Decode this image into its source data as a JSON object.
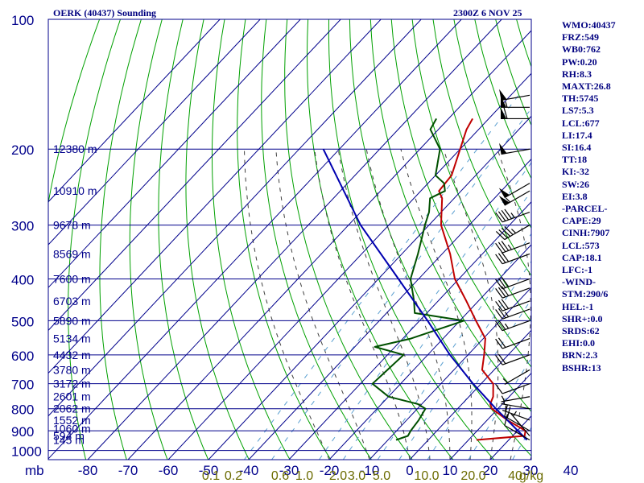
{
  "header": {
    "station": "OERK (40437) Sounding",
    "time": "2300Z  6 NOV 25"
  },
  "colors": {
    "frame": "#00008b",
    "text": "#000080",
    "temperature": "#c00000",
    "dewpoint": "#005000",
    "parcel": "#0000b0",
    "dry_adiabat": "#00a000",
    "moist_adiabat": "#404040",
    "mixing_ratio": "#5a9fd0",
    "mixing_ratio_labels": "#6b6b00",
    "wind": "#000000"
  },
  "indices": [
    "WMO:40437",
    "FRZ:549",
    "WB0:762",
    "PW:0.20",
    "RH:8.3",
    "MAXT:26.8",
    "TH:5745",
    "LS7:5.3",
    "LCL:677",
    "LI:17.4",
    "SI:16.4",
    "TT:18",
    "KI:-32",
    "SW:26",
    "EI:3.8",
    "-PARCEL-",
    "CAPE:29",
    "CINH:7907",
    "LCL:573",
    "CAP:18.1",
    "LFC:-1",
    "-WIND-",
    "STM:290/6",
    "HEL:-1",
    "SHR+:0.0",
    "SRDS:62",
    "EHI:0.0",
    "BRN:2.3",
    "BSHR:13"
  ],
  "chart_data": {
    "type": "skew-t",
    "xlabel": "",
    "ylabel": "mb",
    "pressure_ticks": [
      "100",
      "200",
      "300",
      "400",
      "500",
      "600",
      "700",
      "800",
      "900",
      "1000"
    ],
    "pressure_levels": [
      100,
      200,
      300,
      400,
      500,
      600,
      700,
      800,
      900,
      1000
    ],
    "temperature_ticks": [
      "-80",
      "-70",
      "-60",
      "-50",
      "-40",
      "-30",
      "-20",
      "-10",
      "0",
      "10",
      "20",
      "30",
      "40"
    ],
    "temperature_values": [
      -80,
      -70,
      -60,
      -50,
      -40,
      -30,
      -20,
      -10,
      0,
      10,
      20,
      30,
      40
    ],
    "height_labels": [
      {
        "p": 945,
        "text": "145 m"
      },
      {
        "p": 925,
        "text": "594 m"
      },
      {
        "p": 890,
        "text": "1060 m"
      },
      {
        "p": 850,
        "text": "1552 m"
      },
      {
        "p": 800,
        "text": "2062 m"
      },
      {
        "p": 750,
        "text": "2601 m"
      },
      {
        "p": 700,
        "text": "3172 m"
      },
      {
        "p": 650,
        "text": "3780 m"
      },
      {
        "p": 600,
        "text": "4432 m"
      },
      {
        "p": 550,
        "text": "5134 m"
      },
      {
        "p": 500,
        "text": "5890 m"
      },
      {
        "p": 450,
        "text": "6703 m"
      },
      {
        "p": 400,
        "text": "7600 m"
      },
      {
        "p": 350,
        "text": "8569 m"
      },
      {
        "p": 300,
        "text": "9678 m"
      },
      {
        "p": 250,
        "text": "10910 m"
      },
      {
        "p": 200,
        "text": "12380 m"
      }
    ],
    "mixing_ratio_labels": [
      "0.1",
      "0.2",
      "0.6",
      "1.0",
      "2.0",
      "3.0",
      "5.0",
      "10.0",
      "20.0",
      "40",
      "g/kg"
    ],
    "mixing_ratio_values": [
      0.1,
      0.2,
      0.6,
      1.0,
      2.0,
      3.0,
      5.0,
      10.0,
      20.0,
      40.0
    ],
    "series": [
      {
        "key": "temperature",
        "points": [
          [
            945,
            12
          ],
          [
            925,
            23
          ],
          [
            900,
            22
          ],
          [
            850,
            15
          ],
          [
            800,
            8.5
          ],
          [
            780,
            7
          ],
          [
            750,
            6
          ],
          [
            700,
            3
          ],
          [
            650,
            -3
          ],
          [
            600,
            -6
          ],
          [
            550,
            -9.5
          ],
          [
            500,
            -16
          ],
          [
            450,
            -23
          ],
          [
            400,
            -31
          ],
          [
            350,
            -38
          ],
          [
            300,
            -47
          ],
          [
            260,
            -53
          ],
          [
            250,
            -55.5
          ],
          [
            230,
            -56
          ],
          [
            200,
            -60
          ],
          [
            180,
            -63
          ],
          [
            170,
            -64
          ]
        ]
      },
      {
        "key": "dewpoint",
        "points": [
          [
            945,
            -8
          ],
          [
            925,
            -6
          ],
          [
            900,
            -6.5
          ],
          [
            850,
            -7
          ],
          [
            800,
            -8
          ],
          [
            780,
            -11
          ],
          [
            750,
            -20
          ],
          [
            700,
            -27
          ],
          [
            650,
            -26.5
          ],
          [
            600,
            -26
          ],
          [
            575,
            -35
          ],
          [
            550,
            -28
          ],
          [
            500,
            -19
          ],
          [
            480,
            -33
          ],
          [
            450,
            -36
          ],
          [
            400,
            -42
          ],
          [
            350,
            -46
          ],
          [
            300,
            -51
          ],
          [
            280,
            -53
          ],
          [
            260,
            -56
          ],
          [
            250,
            -54
          ],
          [
            240,
            -56
          ],
          [
            230,
            -60
          ],
          [
            200,
            -65
          ],
          [
            180,
            -72
          ],
          [
            170,
            -73
          ]
        ]
      },
      {
        "key": "parcel",
        "points": [
          [
            945,
            24.5
          ],
          [
            850,
            15
          ],
          [
            800,
            9.5
          ],
          [
            700,
            -2
          ],
          [
            600,
            -14.5
          ],
          [
            500,
            -28
          ],
          [
            400,
            -45
          ],
          [
            300,
            -67
          ],
          [
            200,
            -94
          ]
        ]
      }
    ],
    "winds": [
      {
        "p": 945,
        "dir": 300,
        "spd": 10
      },
      {
        "p": 925,
        "dir": 320,
        "spd": 5
      },
      {
        "p": 900,
        "dir": 300,
        "spd": 20
      },
      {
        "p": 850,
        "dir": 290,
        "spd": 5
      },
      {
        "p": 800,
        "dir": 280,
        "spd": 5
      },
      {
        "p": 750,
        "dir": 260,
        "spd": 5
      },
      {
        "p": 700,
        "dir": 250,
        "spd": 10
      },
      {
        "p": 650,
        "dir": 240,
        "spd": 5
      },
      {
        "p": 600,
        "dir": 250,
        "spd": 20
      },
      {
        "p": 550,
        "dir": 250,
        "spd": 20
      },
      {
        "p": 500,
        "dir": 250,
        "spd": 25
      },
      {
        "p": 470,
        "dir": 250,
        "spd": 25
      },
      {
        "p": 450,
        "dir": 250,
        "spd": 30
      },
      {
        "p": 420,
        "dir": 250,
        "spd": 30
      },
      {
        "p": 400,
        "dir": 250,
        "spd": 30
      },
      {
        "p": 350,
        "dir": 250,
        "spd": 30
      },
      {
        "p": 330,
        "dir": 250,
        "spd": 35
      },
      {
        "p": 300,
        "dir": 240,
        "spd": 45
      },
      {
        "p": 280,
        "dir": 250,
        "spd": 45
      },
      {
        "p": 250,
        "dir": 240,
        "spd": 55
      },
      {
        "p": 240,
        "dir": 240,
        "spd": 50
      },
      {
        "p": 200,
        "dir": 260,
        "spd": 50
      },
      {
        "p": 170,
        "dir": 270,
        "spd": 60
      },
      {
        "p": 160,
        "dir": 270,
        "spd": 55
      },
      {
        "p": 150,
        "dir": 260,
        "spd": 50
      }
    ]
  }
}
